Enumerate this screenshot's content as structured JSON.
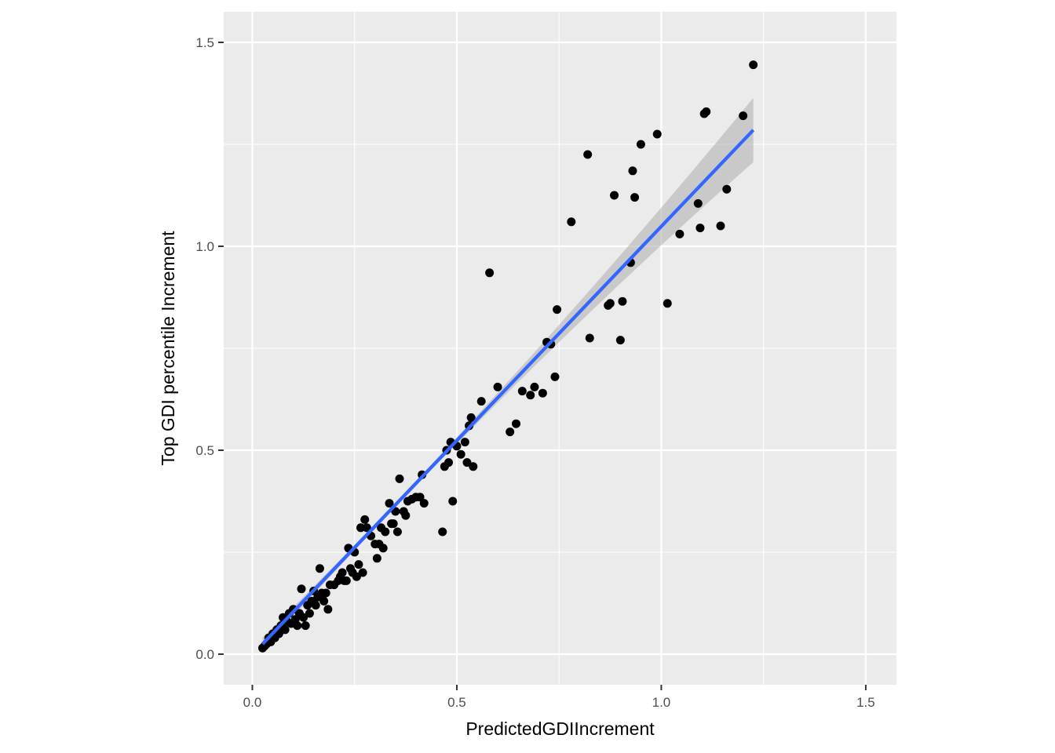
{
  "chart_data": {
    "type": "scatter",
    "title": "",
    "xlabel": "PredictedGDIIncrement",
    "ylabel": "Top GDI percentile Increment",
    "xlim": [
      -0.07,
      1.575
    ],
    "ylim": [
      -0.075,
      1.575
    ],
    "x_ticks": [
      0.0,
      0.5,
      1.0,
      1.5
    ],
    "y_ticks": [
      0.0,
      0.5,
      1.0,
      1.5
    ],
    "x_tick_labels": [
      "0.0",
      "0.5",
      "1.0",
      "1.5"
    ],
    "y_tick_labels": [
      "0.0",
      "0.5",
      "1.0",
      "1.5"
    ],
    "grid": true,
    "legend": "none",
    "colors": {
      "panel": "#ebebeb",
      "grid": "#ffffff",
      "points": "#000000",
      "fit_line": "#3366ff",
      "ribbon": "#b3b3b3"
    },
    "series": [
      {
        "points": [
          [
            0.025,
            0.015
          ],
          [
            0.03,
            0.02
          ],
          [
            0.035,
            0.025
          ],
          [
            0.04,
            0.04
          ],
          [
            0.045,
            0.03
          ],
          [
            0.05,
            0.05
          ],
          [
            0.055,
            0.04
          ],
          [
            0.06,
            0.06
          ],
          [
            0.065,
            0.05
          ],
          [
            0.07,
            0.07
          ],
          [
            0.075,
            0.09
          ],
          [
            0.08,
            0.06
          ],
          [
            0.085,
            0.08
          ],
          [
            0.09,
            0.1
          ],
          [
            0.095,
            0.075
          ],
          [
            0.1,
            0.11
          ],
          [
            0.105,
            0.085
          ],
          [
            0.11,
            0.07
          ],
          [
            0.115,
            0.1
          ],
          [
            0.12,
            0.16
          ],
          [
            0.125,
            0.09
          ],
          [
            0.13,
            0.07
          ],
          [
            0.135,
            0.12
          ],
          [
            0.14,
            0.1
          ],
          [
            0.145,
            0.13
          ],
          [
            0.15,
            0.155
          ],
          [
            0.155,
            0.12
          ],
          [
            0.16,
            0.14
          ],
          [
            0.165,
            0.21
          ],
          [
            0.17,
            0.15
          ],
          [
            0.175,
            0.13
          ],
          [
            0.18,
            0.15
          ],
          [
            0.185,
            0.11
          ],
          [
            0.19,
            0.17
          ],
          [
            0.2,
            0.17
          ],
          [
            0.21,
            0.18
          ],
          [
            0.215,
            0.19
          ],
          [
            0.22,
            0.2
          ],
          [
            0.225,
            0.18
          ],
          [
            0.23,
            0.18
          ],
          [
            0.235,
            0.26
          ],
          [
            0.24,
            0.21
          ],
          [
            0.245,
            0.2
          ],
          [
            0.25,
            0.25
          ],
          [
            0.255,
            0.19
          ],
          [
            0.26,
            0.22
          ],
          [
            0.265,
            0.31
          ],
          [
            0.27,
            0.2
          ],
          [
            0.275,
            0.33
          ],
          [
            0.28,
            0.31
          ],
          [
            0.29,
            0.29
          ],
          [
            0.3,
            0.27
          ],
          [
            0.305,
            0.235
          ],
          [
            0.31,
            0.27
          ],
          [
            0.315,
            0.31
          ],
          [
            0.32,
            0.26
          ],
          [
            0.325,
            0.3
          ],
          [
            0.335,
            0.37
          ],
          [
            0.34,
            0.32
          ],
          [
            0.345,
            0.32
          ],
          [
            0.35,
            0.35
          ],
          [
            0.355,
            0.3
          ],
          [
            0.36,
            0.43
          ],
          [
            0.37,
            0.35
          ],
          [
            0.375,
            0.34
          ],
          [
            0.38,
            0.375
          ],
          [
            0.39,
            0.38
          ],
          [
            0.4,
            0.385
          ],
          [
            0.41,
            0.385
          ],
          [
            0.415,
            0.44
          ],
          [
            0.42,
            0.37
          ],
          [
            0.465,
            0.3
          ],
          [
            0.47,
            0.46
          ],
          [
            0.475,
            0.5
          ],
          [
            0.48,
            0.47
          ],
          [
            0.485,
            0.52
          ],
          [
            0.49,
            0.375
          ],
          [
            0.5,
            0.51
          ],
          [
            0.51,
            0.49
          ],
          [
            0.52,
            0.52
          ],
          [
            0.525,
            0.47
          ],
          [
            0.53,
            0.56
          ],
          [
            0.535,
            0.58
          ],
          [
            0.54,
            0.46
          ],
          [
            0.56,
            0.62
          ],
          [
            0.58,
            0.935
          ],
          [
            0.6,
            0.655
          ],
          [
            0.63,
            0.545
          ],
          [
            0.645,
            0.565
          ],
          [
            0.66,
            0.645
          ],
          [
            0.68,
            0.635
          ],
          [
            0.69,
            0.655
          ],
          [
            0.71,
            0.64
          ],
          [
            0.72,
            0.765
          ],
          [
            0.73,
            0.76
          ],
          [
            0.74,
            0.68
          ],
          [
            0.745,
            0.845
          ],
          [
            0.78,
            1.06
          ],
          [
            0.82,
            1.225
          ],
          [
            0.825,
            0.775
          ],
          [
            0.87,
            0.855
          ],
          [
            0.875,
            0.86
          ],
          [
            0.885,
            1.125
          ],
          [
            0.9,
            0.77
          ],
          [
            0.905,
            0.865
          ],
          [
            0.925,
            0.96
          ],
          [
            0.93,
            1.185
          ],
          [
            0.935,
            1.12
          ],
          [
            0.95,
            1.25
          ],
          [
            0.99,
            1.275
          ],
          [
            1.015,
            0.86
          ],
          [
            1.045,
            1.03
          ],
          [
            1.09,
            1.105
          ],
          [
            1.095,
            1.045
          ],
          [
            1.105,
            1.325
          ],
          [
            1.11,
            1.33
          ],
          [
            1.145,
            1.05
          ],
          [
            1.16,
            1.14
          ],
          [
            1.2,
            1.32
          ],
          [
            1.225,
            1.445
          ]
        ]
      }
    ],
    "fit": {
      "method": "lm",
      "x_range": [
        0.025,
        1.225
      ],
      "y_range": [
        0.025,
        1.285
      ],
      "se": true
    }
  }
}
